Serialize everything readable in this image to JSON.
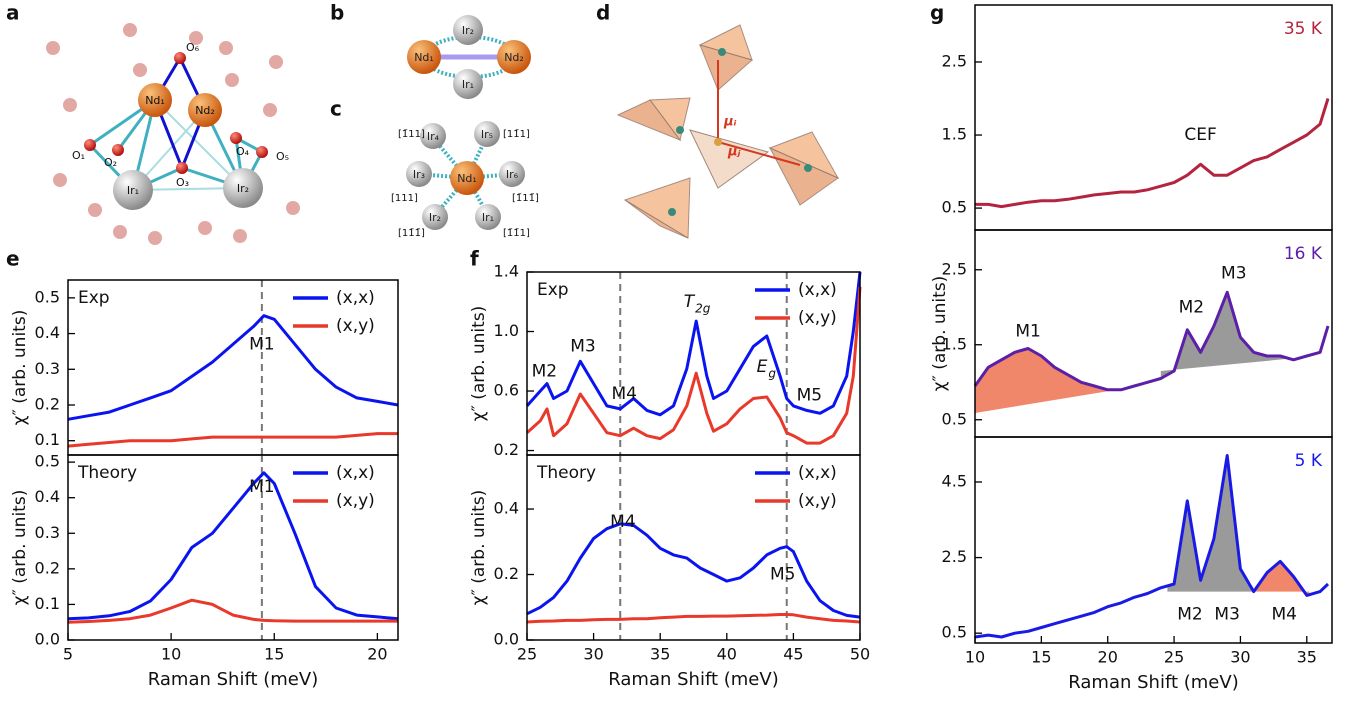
{
  "panel_labels": [
    "a",
    "b",
    "c",
    "d",
    "e",
    "f",
    "g"
  ],
  "diagram_a": {
    "atoms": [
      "O₆",
      "Nd₁",
      "Nd₂",
      "O₁",
      "O₂",
      "O₃",
      "O₄",
      "O₅",
      "Ir₁",
      "Ir₂"
    ]
  },
  "diagram_b": {
    "atoms": [
      "Ir₂",
      "Nd₁",
      "Nd₂",
      "Ir₁"
    ]
  },
  "diagram_c": {
    "atoms": [
      "Ir₄",
      "Ir₅",
      "Ir₃",
      "Nd₁",
      "Ir₆",
      "Ir₂",
      "Ir₁"
    ],
    "directions": [
      "[1̄11]",
      "[11̄1]",
      "[111]",
      "[1̄11̄]",
      "[11̄1̄]",
      "[1̄1̄1]"
    ]
  },
  "diagram_d": {
    "vectors": [
      "μᵢ",
      "μⱼ"
    ]
  },
  "chart_data": [
    {
      "type": "line",
      "title": "Exp",
      "ylabel": "χ″ (arb. units)",
      "legend": "upper right",
      "xlim": [
        5,
        21
      ],
      "ylim": [
        0.06,
        0.55
      ],
      "yticks": [
        0.1,
        0.2,
        0.3,
        0.4,
        0.5
      ],
      "vlines": [
        14.4
      ],
      "x": [
        5,
        6,
        7,
        8,
        9,
        10,
        11,
        12,
        13,
        14,
        14.5,
        15,
        16,
        17,
        18,
        19,
        20,
        21
      ],
      "series": [
        {
          "name": "(x,x)",
          "color": "#0a14f0",
          "values": [
            0.16,
            0.17,
            0.18,
            0.2,
            0.22,
            0.24,
            0.28,
            0.32,
            0.37,
            0.42,
            0.45,
            0.44,
            0.37,
            0.3,
            0.25,
            0.22,
            0.21,
            0.2
          ]
        },
        {
          "name": "(x,y)",
          "color": "#e8392a",
          "values": [
            0.085,
            0.09,
            0.095,
            0.1,
            0.1,
            0.1,
            0.105,
            0.11,
            0.11,
            0.11,
            0.11,
            0.11,
            0.11,
            0.11,
            0.11,
            0.115,
            0.12,
            0.12
          ]
        }
      ],
      "annotations": [
        {
          "text": "M1",
          "x": 14.4,
          "y": 0.37
        }
      ]
    },
    {
      "type": "line",
      "title": "Theory",
      "ylabel": "χ″ (arb. units)",
      "xlabel": "Raman Shift (meV)",
      "legend": "upper right",
      "xlim": [
        5,
        21
      ],
      "ylim": [
        0,
        0.52
      ],
      "xticks": [
        5,
        10,
        15,
        20
      ],
      "yticks": [
        {
          "value": 0,
          "label": "0.0"
        },
        0.1,
        0.2,
        0.3,
        0.4,
        0.5
      ],
      "vlines": [
        14.4
      ],
      "x": [
        5,
        6,
        7,
        8,
        9,
        10,
        11,
        12,
        13,
        14,
        14.5,
        15,
        16,
        17,
        18,
        19,
        20,
        21
      ],
      "series": [
        {
          "name": "(x,x)",
          "color": "#0a14f0",
          "values": [
            0.06,
            0.062,
            0.068,
            0.08,
            0.11,
            0.17,
            0.26,
            0.3,
            0.37,
            0.44,
            0.47,
            0.44,
            0.3,
            0.15,
            0.09,
            0.07,
            0.065,
            0.06
          ]
        },
        {
          "name": "(x,y)",
          "color": "#e8392a",
          "values": [
            0.05,
            0.052,
            0.055,
            0.06,
            0.07,
            0.09,
            0.112,
            0.1,
            0.07,
            0.058,
            0.055,
            0.054,
            0.053,
            0.053,
            0.053,
            0.053,
            0.053,
            0.053
          ]
        }
      ],
      "annotations": [
        {
          "text": "M1",
          "x": 14.4,
          "y": 0.43
        }
      ]
    },
    {
      "type": "line",
      "title": "Exp",
      "ylabel": "χ″ (arb. units)",
      "legend": "upper right",
      "xlim": [
        25,
        50
      ],
      "ylim": [
        0.17,
        1.4
      ],
      "yticks": [
        0.2,
        0.6,
        {
          "value": 1,
          "label": "1.0"
        },
        1.4
      ],
      "vlines": [
        32,
        44.5
      ],
      "x": [
        25,
        26,
        26.5,
        27,
        28,
        29,
        30,
        31,
        32,
        33,
        34,
        35,
        36,
        37,
        37.7,
        38.5,
        39,
        40,
        41,
        42,
        43,
        44,
        44.5,
        45,
        46,
        47,
        48,
        49,
        49.5,
        50
      ],
      "series": [
        {
          "name": "(x,x)",
          "color": "#0a14f0",
          "values": [
            0.5,
            0.6,
            0.65,
            0.55,
            0.6,
            0.8,
            0.65,
            0.5,
            0.48,
            0.55,
            0.47,
            0.44,
            0.5,
            0.75,
            1.07,
            0.7,
            0.55,
            0.6,
            0.75,
            0.9,
            0.97,
            0.7,
            0.55,
            0.5,
            0.47,
            0.45,
            0.5,
            0.7,
            1.0,
            1.4
          ]
        },
        {
          "name": "(x,y)",
          "color": "#e8392a",
          "values": [
            0.32,
            0.4,
            0.48,
            0.3,
            0.38,
            0.58,
            0.45,
            0.32,
            0.3,
            0.35,
            0.3,
            0.28,
            0.34,
            0.5,
            0.72,
            0.45,
            0.33,
            0.38,
            0.48,
            0.55,
            0.56,
            0.42,
            0.32,
            0.3,
            0.25,
            0.25,
            0.3,
            0.45,
            0.7,
            1.3
          ]
        }
      ],
      "annotations": [
        {
          "text": "M2",
          "x": 26.3,
          "y": 0.73
        },
        {
          "text": "M3",
          "x": 29.2,
          "y": 0.9
        },
        {
          "text": "M4",
          "x": 32.3,
          "y": 0.58
        },
        {
          "text": "T",
          "sub": "2g",
          "x": 37.7,
          "y": 1.2
        },
        {
          "text": "E",
          "sub": "g",
          "x": 43.2,
          "y": 0.76
        },
        {
          "text": "M5",
          "x": 46.2,
          "y": 0.57
        }
      ]
    },
    {
      "type": "line",
      "title": "Theory",
      "ylabel": "χ″ (arb. units)",
      "xlabel": "Raman Shift (meV)",
      "legend": "upper right",
      "xlim": [
        25,
        50
      ],
      "ylim": [
        0,
        0.565
      ],
      "xticks": [
        25,
        30,
        35,
        40,
        45,
        50
      ],
      "yticks": [
        {
          "value": 0,
          "label": "0.0"
        },
        0.2,
        0.4
      ],
      "vlines": [
        32,
        44.5
      ],
      "x": [
        25,
        26,
        27,
        28,
        29,
        30,
        31,
        32,
        33,
        34,
        35,
        36,
        37,
        38,
        39,
        40,
        41,
        42,
        43,
        44,
        44.5,
        45,
        46,
        47,
        48,
        49,
        50
      ],
      "series": [
        {
          "name": "(x,x)",
          "color": "#0a14f0",
          "values": [
            0.08,
            0.1,
            0.13,
            0.18,
            0.25,
            0.31,
            0.34,
            0.355,
            0.35,
            0.32,
            0.28,
            0.26,
            0.25,
            0.22,
            0.2,
            0.18,
            0.19,
            0.22,
            0.26,
            0.28,
            0.285,
            0.27,
            0.18,
            0.12,
            0.09,
            0.075,
            0.07
          ]
        },
        {
          "name": "(x,y)",
          "color": "#e8392a",
          "values": [
            0.055,
            0.057,
            0.058,
            0.06,
            0.06,
            0.062,
            0.063,
            0.063,
            0.065,
            0.065,
            0.068,
            0.07,
            0.072,
            0.072,
            0.073,
            0.073,
            0.074,
            0.075,
            0.076,
            0.078,
            0.078,
            0.077,
            0.07,
            0.065,
            0.06,
            0.058,
            0.055
          ]
        }
      ],
      "annotations": [
        {
          "text": "M4",
          "x": 32.2,
          "y": 0.36
        },
        {
          "text": "M5",
          "x": 44.2,
          "y": 0.2
        }
      ]
    },
    {
      "type": "line",
      "title": "35 K",
      "xlim": [
        10,
        36.9
      ],
      "ylim": [
        0.2,
        3.28
      ],
      "yticks": [
        0.5,
        1.5,
        2.5
      ],
      "x": [
        10,
        11,
        12,
        13,
        14,
        15,
        16,
        17,
        18,
        19,
        20,
        21,
        22,
        23,
        24,
        25,
        26,
        27,
        28,
        29,
        30,
        31,
        32,
        33,
        34,
        35,
        36,
        36.6
      ],
      "series": [
        {
          "color": "#b5243f",
          "values": [
            0.55,
            0.55,
            0.52,
            0.55,
            0.58,
            0.6,
            0.6,
            0.62,
            0.65,
            0.68,
            0.7,
            0.72,
            0.72,
            0.75,
            0.8,
            0.85,
            0.95,
            1.1,
            0.95,
            0.95,
            1.05,
            1.15,
            1.2,
            1.3,
            1.4,
            1.5,
            1.65,
            2.0
          ]
        }
      ],
      "annotations": [
        {
          "text": "CEF",
          "x": 27,
          "y": 1.5
        }
      ]
    },
    {
      "type": "line",
      "title": "16 K",
      "ylabel": "χ″ (arb. units)",
      "xlim": [
        10,
        36.9
      ],
      "ylim": [
        0.27,
        3.03
      ],
      "yticks": [
        0.5,
        1.5,
        2.5
      ],
      "x": [
        10,
        11,
        12,
        13,
        14,
        15,
        16,
        17,
        18,
        19,
        20,
        21,
        22,
        23,
        24,
        25,
        26,
        27,
        28,
        29,
        30,
        31,
        32,
        33,
        34,
        35,
        36,
        36.6
      ],
      "series": [
        {
          "color": "#5b1fa8",
          "values": [
            0.95,
            1.2,
            1.3,
            1.4,
            1.45,
            1.35,
            1.2,
            1.1,
            1.0,
            0.95,
            0.9,
            0.9,
            0.95,
            1.0,
            1.05,
            1.15,
            1.7,
            1.4,
            1.75,
            2.2,
            1.6,
            1.4,
            1.35,
            1.35,
            1.3,
            1.35,
            1.4,
            1.75
          ]
        }
      ],
      "shaded": [
        {
          "from": 10,
          "to": 20,
          "base": [
            0.59,
            0.88
          ],
          "color": "#f0876a"
        },
        {
          "from": 24,
          "to": 34,
          "base": [
            1.15,
            1.32
          ],
          "color": "#9a9a9a"
        }
      ],
      "annotations": [
        {
          "text": "M1",
          "x": 14,
          "y": 1.68
        },
        {
          "text": "M2",
          "x": 26.3,
          "y": 2.0
        },
        {
          "text": "M3",
          "x": 29.5,
          "y": 2.45
        }
      ]
    },
    {
      "type": "line",
      "title": "5 K",
      "xlabel": "Raman Shift (meV)",
      "xlim": [
        10,
        36.9
      ],
      "ylim": [
        0.24,
        5.69
      ],
      "xticks": [
        10,
        15,
        20,
        25,
        30,
        35
      ],
      "yticks": [
        0.5,
        2.5,
        4.5
      ],
      "x": [
        10,
        11,
        12,
        13,
        14,
        15,
        16,
        17,
        18,
        19,
        20,
        21,
        22,
        23,
        24,
        25,
        26,
        27,
        28,
        29,
        30,
        31,
        32,
        33,
        34,
        35,
        36,
        36.6
      ],
      "series": [
        {
          "color": "#1a1ae6",
          "values": [
            0.4,
            0.45,
            0.4,
            0.5,
            0.55,
            0.65,
            0.75,
            0.85,
            0.95,
            1.05,
            1.2,
            1.3,
            1.45,
            1.55,
            1.7,
            1.8,
            4.0,
            1.9,
            3.0,
            5.2,
            2.2,
            1.6,
            2.1,
            2.4,
            2.0,
            1.5,
            1.6,
            1.8
          ]
        }
      ],
      "shaded": [
        {
          "from": 24.5,
          "to": 31.2,
          "base": [
            1.6,
            1.6
          ],
          "color": "#9a9a9a"
        },
        {
          "from": 31.2,
          "to": 35.2,
          "base": [
            1.6,
            1.6
          ],
          "color": "#f0876a"
        }
      ],
      "annotations": [
        {
          "text": "M2",
          "x": 26.2,
          "y": 1.0
        },
        {
          "text": "M3",
          "x": 29,
          "y": 1.0
        },
        {
          "text": "M4",
          "x": 33.3,
          "y": 1.0
        }
      ]
    }
  ]
}
